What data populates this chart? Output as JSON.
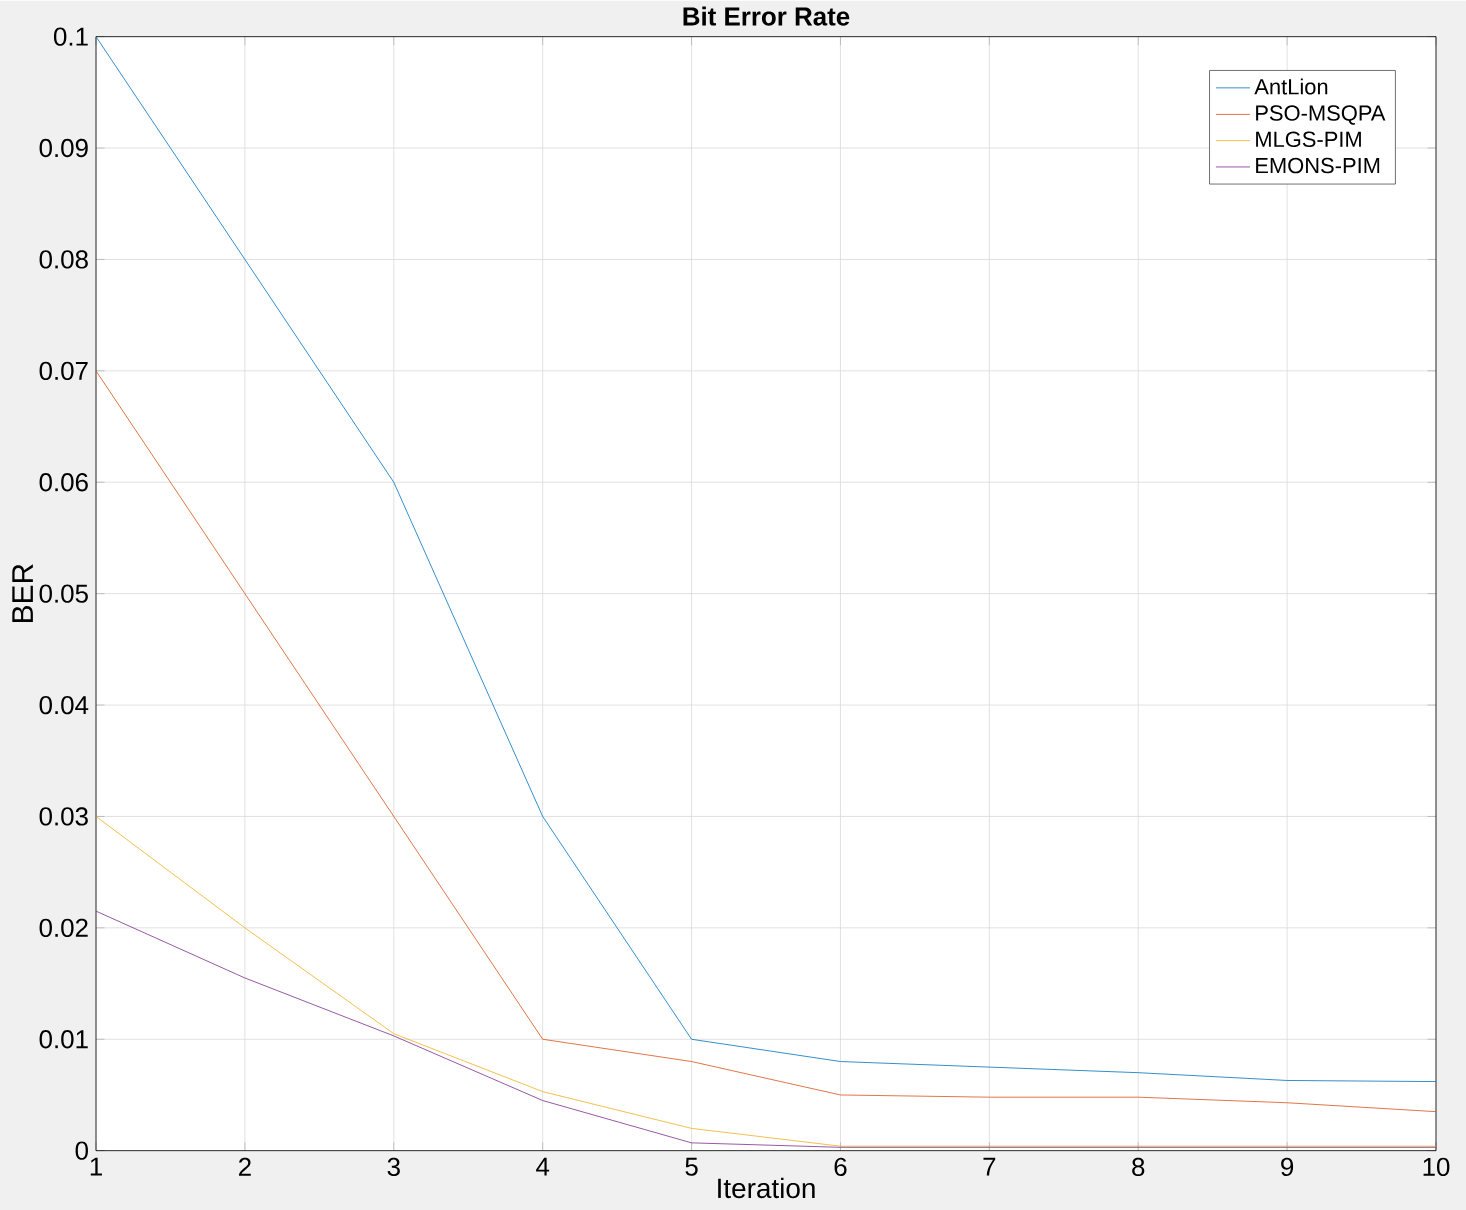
{
  "chart_data": {
    "type": "line",
    "title": "Bit Error Rate",
    "xlabel": "Iteration",
    "ylabel": "BER",
    "x": [
      1,
      2,
      3,
      4,
      5,
      6,
      7,
      8,
      9,
      10
    ],
    "series": [
      {
        "name": "AntLion",
        "color": "#0072bd",
        "values": [
          0.1,
          0.08,
          0.06,
          0.03,
          0.01,
          0.008,
          0.0075,
          0.007,
          0.0063,
          0.0062
        ]
      },
      {
        "name": "PSO-MSQPA",
        "color": "#d95319",
        "values": [
          0.07,
          0.05,
          0.03,
          0.01,
          0.008,
          0.005,
          0.0048,
          0.0048,
          0.0043,
          0.0035
        ]
      },
      {
        "name": "MLGS-PIM",
        "color": "#edb120",
        "values": [
          0.03,
          0.02,
          0.0105,
          0.0053,
          0.002,
          0.0004,
          0.0004,
          0.0004,
          0.0004,
          0.0004
        ]
      },
      {
        "name": "EMONS-PIM",
        "color": "#7e2f8e",
        "values": [
          0.0215,
          0.0155,
          0.0103,
          0.0045,
          0.0007,
          0.0003,
          0.0003,
          0.0003,
          0.0003,
          0.0003
        ]
      }
    ],
    "xlim": [
      1,
      10
    ],
    "ylim": [
      0,
      0.1
    ],
    "xticks": [
      1,
      2,
      3,
      4,
      5,
      6,
      7,
      8,
      9,
      10
    ],
    "yticks": [
      0,
      0.01,
      0.02,
      0.03,
      0.04,
      0.05,
      0.06,
      0.07,
      0.08,
      0.09,
      0.1
    ],
    "grid": true,
    "legend": "top right",
    "marker": "none",
    "line_style": "solid"
  }
}
